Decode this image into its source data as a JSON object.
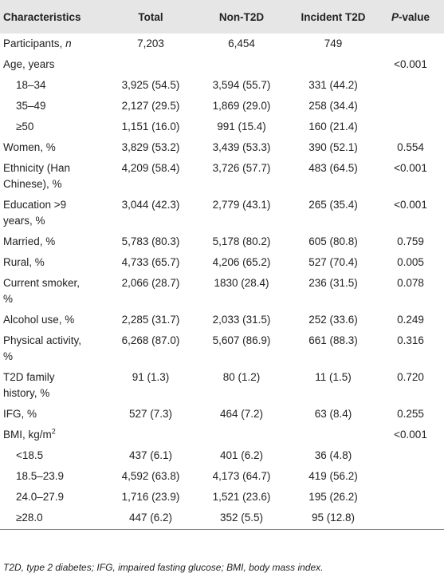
{
  "header": {
    "columns": [
      "Characteristics",
      "Total",
      "Non-T2D",
      "Incident T2D"
    ],
    "p_column": {
      "italic": "P",
      "text": "-value"
    }
  },
  "rows": [
    {
      "label": "Participants,",
      "label_italic": "n",
      "total": "7,203",
      "non_t2d": "6,454",
      "incident": "749"
    },
    {
      "label": "Age, years",
      "p": "<0.001",
      "subrows": [
        {
          "label": "18–34",
          "total": "3,925 (54.5)",
          "non_t2d": "3,594 (55.7)",
          "incident": "331 (44.2)"
        },
        {
          "label": "35–49",
          "total": "2,127 (29.5)",
          "non_t2d": "1,869 (29.0)",
          "incident": "258 (34.4)"
        },
        {
          "label": "≥50",
          "total": "1,151 (16.0)",
          "non_t2d": "991 (15.4)",
          "incident": "160 (21.4)"
        }
      ]
    },
    {
      "label": "Women, %",
      "total": "3,829 (53.2)",
      "non_t2d": "3,439 (53.3)",
      "incident": "390 (52.1)",
      "p": "0.554"
    },
    {
      "label": [
        "Ethnicity (Han",
        "Chinese), %"
      ],
      "total": "4,209 (58.4)",
      "non_t2d": "3,726 (57.7)",
      "incident": "483 (64.5)",
      "p": "<0.001"
    },
    {
      "label": [
        "Education >9",
        "years, %"
      ],
      "total": "3,044 (42.3)",
      "non_t2d": "2,779 (43.1)",
      "incident": "265 (35.4)",
      "p": "<0.001"
    },
    {
      "label": "Married, %",
      "total": "5,783 (80.3)",
      "non_t2d": "5,178 (80.2)",
      "incident": "605 (80.8)",
      "p": "0.759"
    },
    {
      "label": "Rural, %",
      "total": "4,733 (65.7)",
      "non_t2d": "4,206 (65.2)",
      "incident": "527 (70.4)",
      "p": "0.005"
    },
    {
      "label": [
        "Current smoker,",
        "%"
      ],
      "total": "2,066 (28.7)",
      "non_t2d": "1830 (28.4)",
      "incident": "236 (31.5)",
      "p": "0.078"
    },
    {
      "label": "Alcohol use, %",
      "total": "2,285 (31.7)",
      "non_t2d": "2,033 (31.5)",
      "incident": "252 (33.6)",
      "p": "0.249"
    },
    {
      "label": [
        "Physical activity,",
        "%"
      ],
      "total": "6,268 (87.0)",
      "non_t2d": "5,607 (86.9)",
      "incident": "661 (88.3)",
      "p": "0.316"
    },
    {
      "label": [
        "T2D family",
        "history, %"
      ],
      "total": "91 (1.3)",
      "non_t2d": "80 (1.2)",
      "incident": "11 (1.5)",
      "p": "0.720"
    },
    {
      "label": "IFG, %",
      "total": "527 (7.3)",
      "non_t2d": "464 (7.2)",
      "incident": "63 (8.4)",
      "p": "0.255"
    },
    {
      "label": "BMI, kg/m",
      "label_sup": "2",
      "p": "<0.001",
      "subrows": [
        {
          "label": "<18.5",
          "total": "437 (6.1)",
          "non_t2d": "401 (6.2)",
          "incident": "36 (4.8)"
        },
        {
          "label": "18.5–23.9",
          "total": "4,592 (63.8)",
          "non_t2d": "4,173 (64.7)",
          "incident": "419 (56.2)"
        },
        {
          "label": "24.0–27.9",
          "total": "1,716 (23.9)",
          "non_t2d": "1,521 (23.6)",
          "incident": "195 (26.2)"
        },
        {
          "label": "≥28.0",
          "total": "447 (6.2)",
          "non_t2d": "352 (5.5)",
          "incident": "95 (12.8)"
        }
      ]
    }
  ],
  "footnote": "T2D, type 2 diabetes; IFG, impaired fasting glucose; BMI, body mass index."
}
